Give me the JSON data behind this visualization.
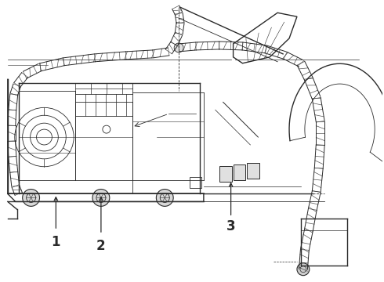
{
  "bg_color": "#ffffff",
  "line_color": "#2a2a2a",
  "label1": "1",
  "label2": "2",
  "label3": "3",
  "fig_width": 4.9,
  "fig_height": 3.6,
  "dpi": 100
}
